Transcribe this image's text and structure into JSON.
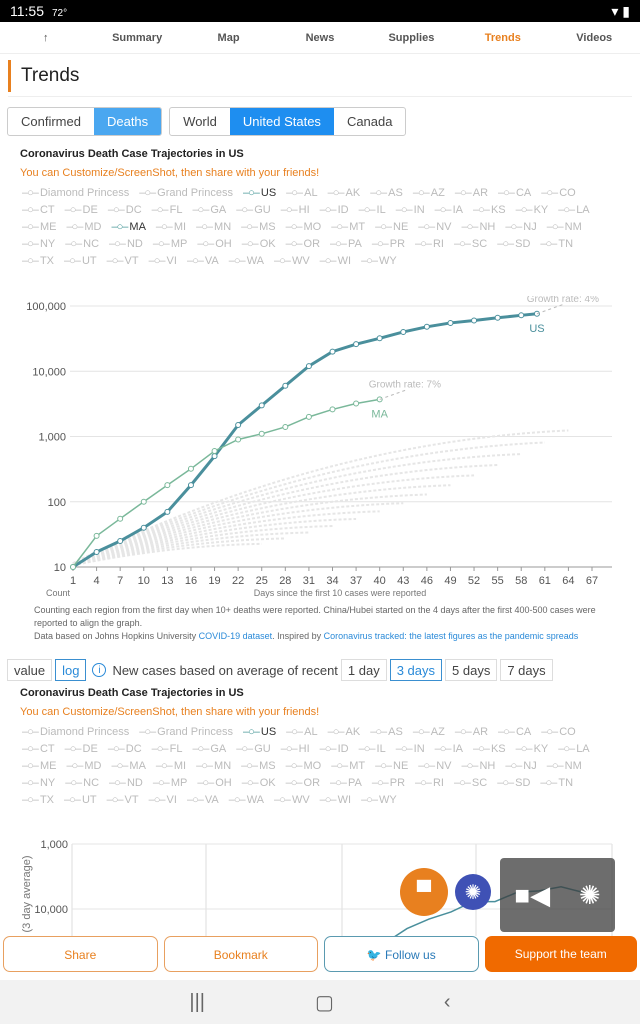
{
  "status": {
    "time": "11:55",
    "temp": "72°"
  },
  "nav": {
    "items": [
      "Summary",
      "Map",
      "News",
      "Supplies",
      "Trends",
      "Videos"
    ],
    "active": "Trends"
  },
  "page_title": "Trends",
  "metric_tabs": [
    "Confirmed",
    "Deaths"
  ],
  "metric_selected": "Deaths",
  "region_tabs": [
    "World",
    "United States",
    "Canada"
  ],
  "region_selected": "United States",
  "chart1": {
    "title": "Coronavirus Death Case Trajectories in US",
    "subtitle": "You can Customize/ScreenShot, then share with your friends!"
  },
  "legend": [
    "Diamond Princess",
    "Grand Princess",
    "US",
    "AL",
    "AK",
    "AS",
    "AZ",
    "AR",
    "CA",
    "CO",
    "CT",
    "DE",
    "DC",
    "FL",
    "GA",
    "GU",
    "HI",
    "ID",
    "IL",
    "IN",
    "IA",
    "KS",
    "KY",
    "LA",
    "ME",
    "MD",
    "MA",
    "MI",
    "MN",
    "MS",
    "MO",
    "MT",
    "NE",
    "NV",
    "NH",
    "NJ",
    "NM",
    "NY",
    "NC",
    "ND",
    "MP",
    "OH",
    "OK",
    "OR",
    "PA",
    "PR",
    "RI",
    "SC",
    "SD",
    "TN",
    "TX",
    "UT",
    "VT",
    "VI",
    "VA",
    "WA",
    "WV",
    "WI",
    "WY"
  ],
  "legend_selected": [
    "US",
    "MA"
  ],
  "colors": {
    "accent": "#e8801f",
    "us": "#4a8f9c",
    "ma": "#7ab89a",
    "blue": "#1e8ef0"
  },
  "chart_data": [
    {
      "type": "line",
      "title": "Coronavirus Death Case Trajectories in US",
      "xlabel": "Days since the first 10 cases were reported",
      "ylabel": "Count",
      "yscale": "log",
      "ylim": [
        10,
        100000
      ],
      "yticks": [
        "10",
        "100",
        "1,000",
        "10,000",
        "100,000"
      ],
      "xticks": [
        1,
        4,
        7,
        10,
        13,
        16,
        19,
        22,
        25,
        28,
        31,
        34,
        37,
        40,
        43,
        46,
        49,
        52,
        55,
        58,
        61,
        64,
        67
      ],
      "series": [
        {
          "name": "US",
          "x": [
            1,
            4,
            7,
            10,
            13,
            16,
            19,
            22,
            25,
            28,
            31,
            34,
            37,
            40,
            43,
            46,
            49,
            52,
            55,
            58,
            60
          ],
          "y": [
            10,
            17,
            25,
            40,
            70,
            180,
            500,
            1500,
            3000,
            6000,
            12000,
            20000,
            26000,
            32000,
            40000,
            48000,
            55000,
            60000,
            66000,
            72000,
            76000
          ],
          "annotation": "Growth rate: 4%"
        },
        {
          "name": "MA",
          "x": [
            1,
            4,
            7,
            10,
            13,
            16,
            19,
            22,
            25,
            28,
            31,
            34,
            37,
            40
          ],
          "y": [
            10,
            30,
            55,
            100,
            180,
            320,
            600,
            900,
            1100,
            1400,
            2000,
            2600,
            3200,
            3700
          ],
          "annotation": "Growth rate: 7%"
        }
      ]
    },
    {
      "type": "line",
      "ylabel": "(3 day average)",
      "ylabel_visible": "r average)",
      "yscale": "log",
      "yticks": [
        "1,000",
        "10,000"
      ],
      "series": [
        {
          "name": "US",
          "y": [
            300,
            500,
            700,
            900,
            1300,
            1300,
            1800,
            1900,
            2200,
            1800
          ]
        }
      ]
    }
  ],
  "note": {
    "line1": "Counting each region from the first day when 10+ deaths  were reported. China/Hubei started on the 4 days after the first 400-500 cases were reported to align the graph.",
    "prefix": "Data based on Johns Hopkins University ",
    "link1": "COVID-19 dataset",
    "mid": ". Inspired by ",
    "link2": "Coronavirus tracked: the latest figures as the pandemic spreads"
  },
  "scale_toggle": [
    "value",
    "log"
  ],
  "scale_selected": "log",
  "avg_label": "New cases based on average of recent",
  "avg_options": [
    "1 day",
    "3 days",
    "5 days",
    "7 days"
  ],
  "avg_selected": "3 days",
  "bottom": {
    "share": "Share",
    "bookmark": "Bookmark",
    "follow": "Follow us",
    "support": "Support the team"
  }
}
